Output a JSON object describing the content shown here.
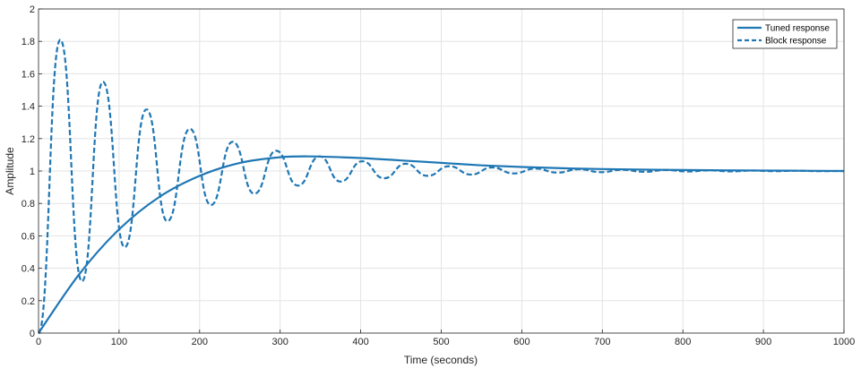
{
  "chart_data": {
    "type": "line",
    "title": "",
    "xlabel": "Time (seconds)",
    "ylabel": "Amplitude",
    "xlim": [
      0,
      1000
    ],
    "ylim": [
      0,
      2
    ],
    "grid": true,
    "legend_position": "top-right",
    "x_ticks": [
      0,
      100,
      200,
      300,
      400,
      500,
      600,
      700,
      800,
      900,
      1000
    ],
    "x_tick_labels": [
      "0",
      "100",
      "200",
      "300",
      "400",
      "500",
      "600",
      "700",
      "800",
      "900",
      "1000"
    ],
    "y_ticks": [
      0,
      0.2,
      0.4,
      0.6,
      0.8,
      1,
      1.2,
      1.4,
      1.6,
      1.8,
      2
    ],
    "y_tick_labels": [
      "0",
      "0.2",
      "0.4",
      "0.6",
      "0.8",
      "1",
      "1.2",
      "1.4",
      "1.6",
      "1.8",
      "2"
    ],
    "series": [
      {
        "name": "Tuned response",
        "style": "solid",
        "color": "#1f77b4",
        "x": [
          0,
          50,
          100,
          150,
          200,
          250,
          300,
          340,
          400,
          450,
          500,
          550,
          600,
          650,
          700,
          800,
          900,
          1000
        ],
        "y": [
          0,
          0.36,
          0.64,
          0.84,
          0.97,
          1.05,
          1.085,
          1.09,
          1.08,
          1.065,
          1.05,
          1.035,
          1.025,
          1.017,
          1.012,
          1.006,
          1.003,
          1.0
        ]
      },
      {
        "name": "Block response",
        "style": "dashed",
        "color": "#1f77b4",
        "x": [
          0,
          27,
          54,
          80,
          107,
          134,
          160,
          188,
          214,
          241,
          268,
          295,
          322,
          349,
          375,
          402,
          429,
          456,
          483,
          510,
          537,
          563,
          590,
          617,
          644,
          671,
          698,
          725,
          752,
          779,
          806,
          833,
          860,
          887,
          914,
          941,
          968,
          1000
        ],
        "y": [
          0,
          1.81,
          0.32,
          1.55,
          0.53,
          1.38,
          0.69,
          1.26,
          0.79,
          1.18,
          0.86,
          1.125,
          0.91,
          1.09,
          0.935,
          1.06,
          0.955,
          1.045,
          0.97,
          1.03,
          0.978,
          1.022,
          0.985,
          1.015,
          0.99,
          1.011,
          0.993,
          1.008,
          0.995,
          1.006,
          0.997,
          1.004,
          0.998,
          1.003,
          0.999,
          1.002,
          0.999,
          1.0
        ]
      }
    ]
  }
}
